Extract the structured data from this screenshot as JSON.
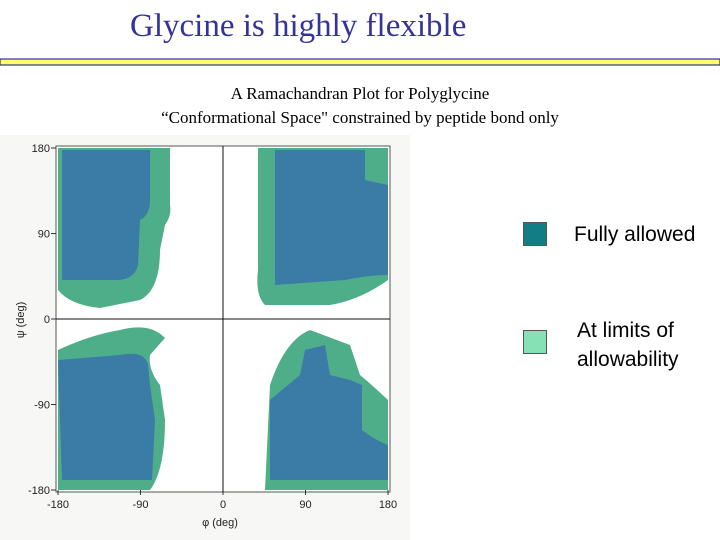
{
  "slide": {
    "title": "Glycine is highly flexible",
    "subtitle_lines": [
      "A Ramachandran Plot for Polyglycine",
      "“Conformational Space\" constrained by peptide bond only"
    ]
  },
  "plot": {
    "xlim": [
      -180,
      180
    ],
    "ylim": [
      -180,
      180
    ],
    "xticks": [
      -180,
      -90,
      0,
      90,
      180
    ],
    "yticks": [
      -180,
      -90,
      0,
      90,
      180
    ],
    "xlabel": "φ (deg)",
    "ylabel": "ψ (deg)"
  },
  "legend": [
    {
      "label": "Fully allowed",
      "color": "#137d86"
    },
    {
      "label": "At limits of allowability",
      "color": "#86e2b4"
    }
  ]
}
